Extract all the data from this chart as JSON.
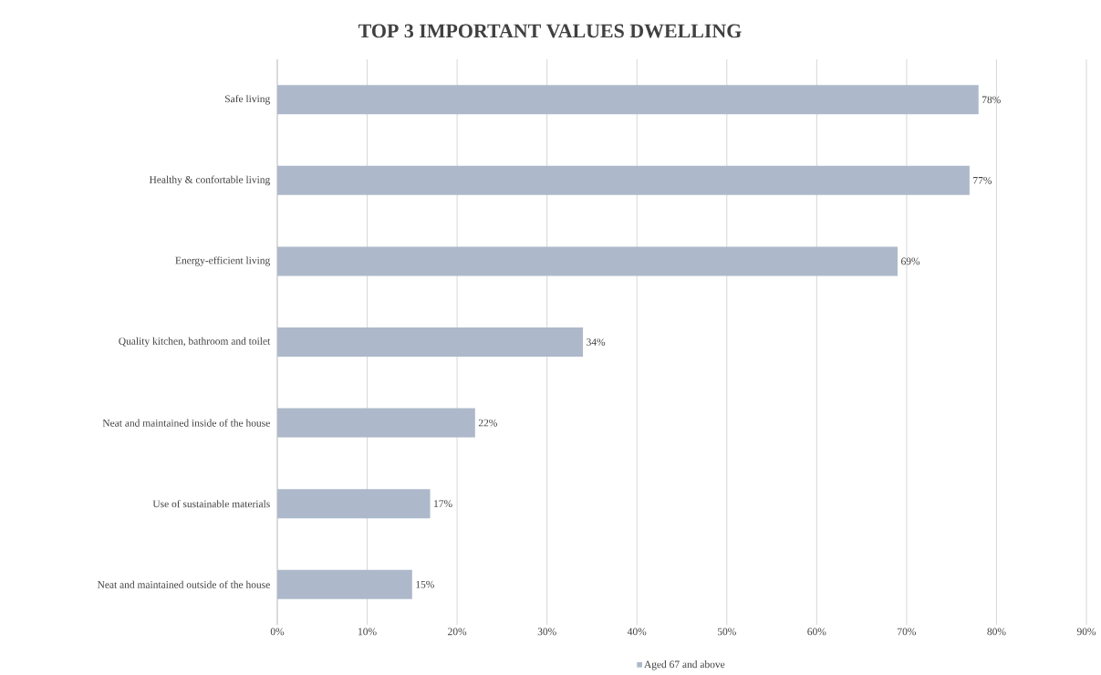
{
  "chart_data": {
    "type": "bar",
    "orientation": "horizontal",
    "title": "TOP 3 IMPORTANT VALUES DWELLING",
    "categories": [
      "Safe living",
      "Healthy & confortable living",
      "Energy-efficient living",
      "Quality kitchen, bathroom and toilet",
      "Neat and maintained inside of the house",
      "Use of sustainable materials",
      "Neat and maintained outside of the house"
    ],
    "series": [
      {
        "name": "Aged 67 and above",
        "color": "#adb9ca",
        "values": [
          78,
          77,
          69,
          34,
          22,
          17,
          15
        ]
      }
    ],
    "value_labels": [
      "78%",
      "77%",
      "69%",
      "34%",
      "22%",
      "17%",
      "15%"
    ],
    "xlim": [
      0,
      90
    ],
    "xticks": [
      {
        "value": 0,
        "label": "0%"
      },
      {
        "value": 10,
        "label": "10%"
      },
      {
        "value": 20,
        "label": "20%"
      },
      {
        "value": 30,
        "label": "30%"
      },
      {
        "value": 40,
        "label": "40%"
      },
      {
        "value": 50,
        "label": "50%"
      },
      {
        "value": 60,
        "label": "60%"
      },
      {
        "value": 70,
        "label": "70%"
      },
      {
        "value": 80,
        "label": "80%"
      },
      {
        "value": 90,
        "label": "90%"
      }
    ],
    "grid": "x",
    "legend": "bottom"
  }
}
